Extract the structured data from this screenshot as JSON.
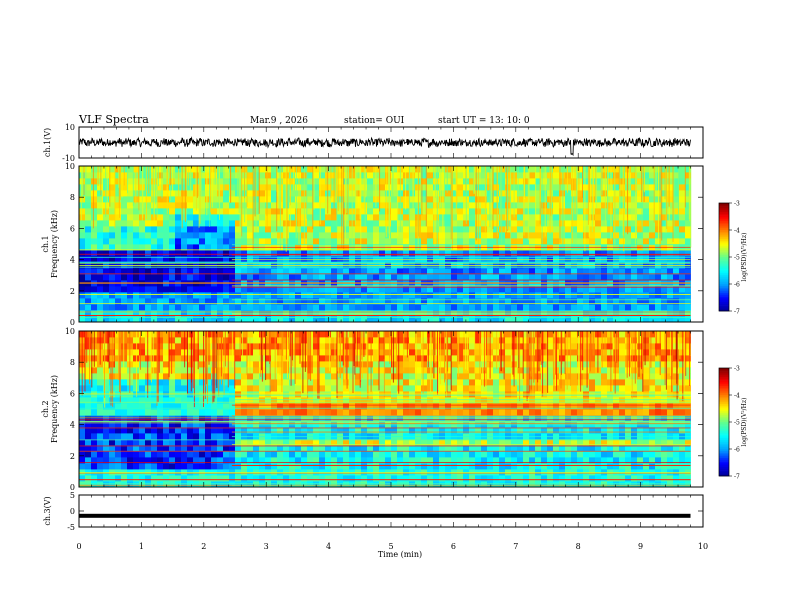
{
  "header": {
    "title": "VLF Spectra",
    "date": "Mar.9 , 2026",
    "station": "station= OUI",
    "start": "start UT = 13: 10: 0"
  },
  "chart_data": [
    {
      "type": "line",
      "name": "ch1-waveform",
      "ylabel": "ch.1(V)",
      "ylim": [
        -10,
        10
      ],
      "yticks": [
        "10",
        "-10"
      ],
      "xlim": [
        0,
        10
      ],
      "x_extent_min": 9.8,
      "baseline": 0,
      "amplitude": 2.5,
      "spike_at_min": 7.9
    },
    {
      "type": "heatmap",
      "name": "ch1-spectrogram",
      "ylabel": "ch.1\nFrequency (kHz)",
      "ylabel_lines": [
        "ch.1",
        "Frequency (kHz)"
      ],
      "ylim": [
        0,
        10
      ],
      "yticks": [
        "0",
        "2",
        "4",
        "6",
        "8",
        "10"
      ],
      "xlim": [
        0,
        10
      ],
      "colorbar": {
        "label": "log(PSD)(V²/Hz)",
        "range": [
          -7,
          -3
        ],
        "ticks": [
          "-3",
          "-4",
          "-5",
          "-6",
          "-7"
        ]
      }
    },
    {
      "type": "heatmap",
      "name": "ch2-spectrogram",
      "ylabel": "ch.2\nFrequency (kHz)",
      "ylabel_lines": [
        "ch.2",
        "Frequency (kHz)"
      ],
      "ylim": [
        0,
        10
      ],
      "yticks": [
        "0",
        "2",
        "4",
        "6",
        "8",
        "10"
      ],
      "xlim": [
        0,
        10
      ],
      "colorbar": {
        "label": "log(PSD)(V²/Hz)",
        "range": [
          -7,
          -3
        ],
        "ticks": [
          "-3",
          "-4",
          "-5",
          "-6",
          "-7"
        ]
      }
    },
    {
      "type": "line",
      "name": "ch3-waveform",
      "ylabel": "ch.3(V)",
      "ylim": [
        -5,
        5
      ],
      "yticks": [
        "5",
        "0",
        "-5"
      ],
      "xlim": [
        0,
        10
      ],
      "x_extent_min": 9.8,
      "baseline": -1.5
    }
  ],
  "x_axis": {
    "label": "Time (min)",
    "ticks": [
      "0",
      "1",
      "2",
      "3",
      "4",
      "5",
      "6",
      "7",
      "8",
      "9",
      "10"
    ]
  },
  "colors": {
    "jet": [
      "#00008f",
      "#0000ff",
      "#00a0ff",
      "#00ffff",
      "#60ff90",
      "#ffff00",
      "#ff8000",
      "#ff0000",
      "#800000"
    ]
  }
}
